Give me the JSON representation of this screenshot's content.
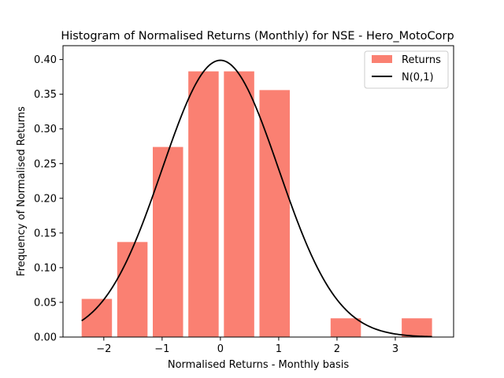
{
  "chart_data": {
    "type": "bar",
    "title": "Histogram of Normalised Returns (Monthly) for NSE - Hero_MotoCorp",
    "xlabel": "Normalised Returns - Monthly basis",
    "ylabel": "Frequency of Normalised Returns",
    "xlim": [
      -2.7,
      4.0
    ],
    "ylim": [
      0.0,
      0.42
    ],
    "xticks": [
      -2,
      -1,
      0,
      1,
      2,
      3
    ],
    "xtick_labels": [
      "−2",
      "−1",
      "0",
      "1",
      "2",
      "3"
    ],
    "yticks": [
      0.0,
      0.05,
      0.1,
      0.15,
      0.2,
      0.25,
      0.3,
      0.35,
      0.4
    ],
    "ytick_labels": [
      "0.00",
      "0.05",
      "0.10",
      "0.15",
      "0.20",
      "0.25",
      "0.30",
      "0.35",
      "0.40"
    ],
    "grid": false,
    "legend_position": "top-right",
    "bars": {
      "name": "Returns",
      "color": "#fa8072",
      "bins": [
        {
          "x0": -2.38,
          "x1": -1.86,
          "value": 0.055
        },
        {
          "x0": -1.77,
          "x1": -1.25,
          "value": 0.137
        },
        {
          "x0": -1.16,
          "x1": -0.64,
          "value": 0.274
        },
        {
          "x0": -0.55,
          "x1": -0.03,
          "value": 0.383
        },
        {
          "x0": 0.06,
          "x1": 0.58,
          "value": 0.383
        },
        {
          "x0": 0.67,
          "x1": 1.19,
          "value": 0.356
        },
        {
          "x0": 1.28,
          "x1": 1.8,
          "value": 0.0
        },
        {
          "x0": 1.89,
          "x1": 2.41,
          "value": 0.027
        },
        {
          "x0": 2.5,
          "x1": 3.02,
          "value": 0.0
        },
        {
          "x0": 3.11,
          "x1": 3.63,
          "value": 0.027
        }
      ]
    },
    "curve": {
      "name": "N(0,1)",
      "color": "#000000",
      "distribution": "normal",
      "mean": 0,
      "sd": 1,
      "x_range": [
        -2.38,
        3.63
      ]
    }
  }
}
